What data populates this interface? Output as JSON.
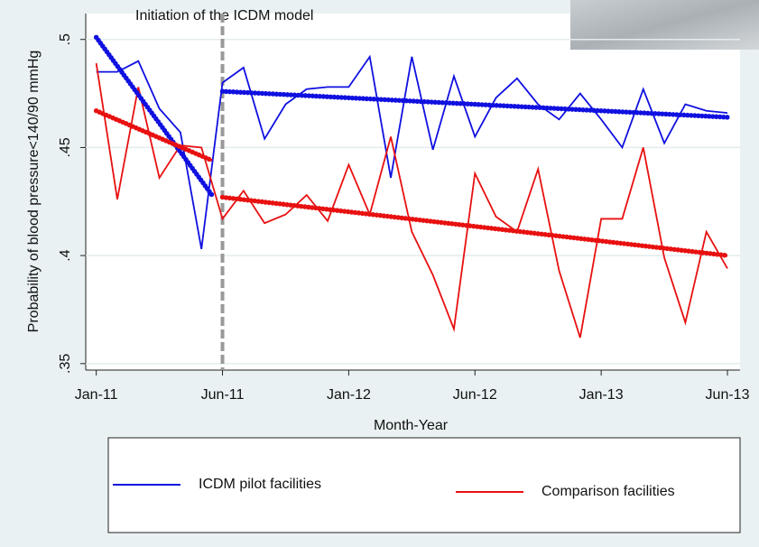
{
  "chart_data": {
    "type": "line",
    "annotation": "Initiation of the ICDM model",
    "xlabel": "Month-Year",
    "ylabel": "Probability of blood pressure<140/90 mmHg",
    "x": [
      0,
      1,
      2,
      3,
      4,
      5,
      6,
      7,
      8,
      9,
      10,
      11,
      12,
      13,
      14,
      15,
      16,
      17,
      18,
      19,
      20,
      21,
      22,
      23,
      24,
      25,
      26,
      27,
      28,
      29,
      30
    ],
    "series": [
      {
        "name": "ICDM pilot facilities",
        "color": "#1010e0",
        "values": [
          0.485,
          0.485,
          0.49,
          0.468,
          0.457,
          0.403,
          0.48,
          0.487,
          0.454,
          0.47,
          0.477,
          0.478,
          0.478,
          0.492,
          0.436,
          0.492,
          0.449,
          0.483,
          0.455,
          0.473,
          0.482,
          0.47,
          0.463,
          0.475,
          0.463,
          0.45,
          0.477,
          0.452,
          0.47,
          0.467,
          0.466
        ]
      },
      {
        "name": "Comparison facilities",
        "color": "#e81010",
        "values": [
          0.489,
          0.426,
          0.478,
          0.436,
          0.451,
          0.45,
          0.417,
          0.43,
          0.415,
          0.419,
          0.428,
          0.416,
          0.442,
          0.419,
          0.455,
          0.411,
          0.391,
          0.366,
          0.438,
          0.418,
          0.411,
          0.44,
          0.393,
          0.362,
          0.417,
          0.417,
          0.45,
          0.399,
          0.369,
          0.411,
          0.394
        ]
      }
    ],
    "fits": [
      {
        "color": "#1010e0",
        "x": [
          0,
          5.5
        ],
        "values": [
          0.501,
          0.428
        ]
      },
      {
        "color": "#1010e0",
        "x": [
          6,
          30
        ],
        "values": [
          0.476,
          0.464
        ]
      },
      {
        "color": "#e81010",
        "x": [
          0,
          5.5
        ],
        "values": [
          0.467,
          0.444
        ]
      },
      {
        "color": "#e81010",
        "x": [
          6,
          30
        ],
        "values": [
          0.427,
          0.4
        ]
      }
    ],
    "intervention_x": 6,
    "xlim": [
      -0.5,
      30.6
    ],
    "xticks": [
      {
        "value": 0,
        "label": "Jan-11"
      },
      {
        "value": 6,
        "label": "Jun-11"
      },
      {
        "value": 12,
        "label": "Jan-12"
      },
      {
        "value": 18,
        "label": "Jun-12"
      },
      {
        "value": 24,
        "label": "Jan-13"
      },
      {
        "value": 30,
        "label": "Jun-13"
      }
    ],
    "ylim": [
      0.347,
      0.512
    ],
    "yticks": [
      {
        "value": 0.35,
        "label": ".35"
      },
      {
        "value": 0.4,
        "label": ".4"
      },
      {
        "value": 0.45,
        "label": ".45"
      },
      {
        "value": 0.5,
        "label": ".5"
      }
    ],
    "grid": true
  }
}
